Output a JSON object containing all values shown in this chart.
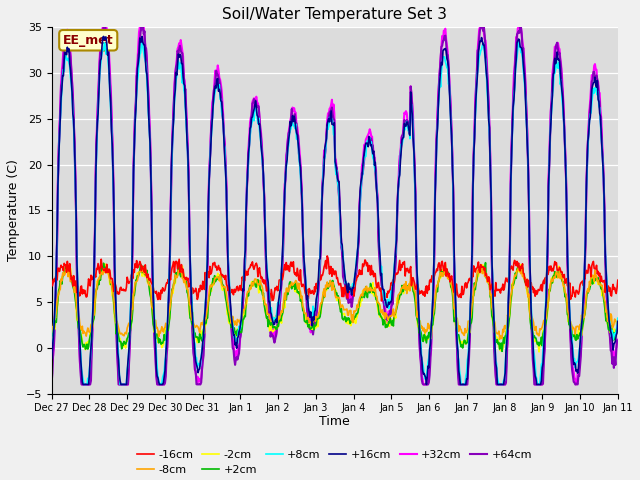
{
  "title": "Soil/Water Temperature Set 3",
  "xlabel": "Time",
  "ylabel": "Temperature (C)",
  "ylim": [
    -5,
    35
  ],
  "background_color": "#dcdcdc",
  "annotation_text": "EE_met",
  "series": [
    {
      "label": "-16cm",
      "color": "#ff0000",
      "lw": 1.2,
      "zorder": 5
    },
    {
      "label": "-8cm",
      "color": "#ffa500",
      "lw": 1.2,
      "zorder": 4
    },
    {
      "label": "-2cm",
      "color": "#ffff00",
      "lw": 1.2,
      "zorder": 3
    },
    {
      "label": "+2cm",
      "color": "#00bb00",
      "lw": 1.2,
      "zorder": 3
    },
    {
      "label": "+8cm",
      "color": "#00ffff",
      "lw": 1.2,
      "zorder": 6
    },
    {
      "label": "+16cm",
      "color": "#000088",
      "lw": 1.2,
      "zorder": 7
    },
    {
      "label": "+32cm",
      "color": "#ff00ff",
      "lw": 1.5,
      "zorder": 2
    },
    {
      "label": "+64cm",
      "color": "#8800bb",
      "lw": 1.5,
      "zorder": 2
    }
  ],
  "xtick_labels": [
    "Dec 27",
    "Dec 28",
    "Dec 29",
    "Dec 30",
    "Dec 31",
    "Jan 1",
    "Jan 2",
    "Jan 3",
    "Jan 4",
    "Jan 5",
    "Jan 6",
    "Jan 7",
    "Jan 8",
    "Jan 9",
    "Jan 10",
    "Jan 11"
  ],
  "n_days": 15,
  "pts_per_day": 48
}
